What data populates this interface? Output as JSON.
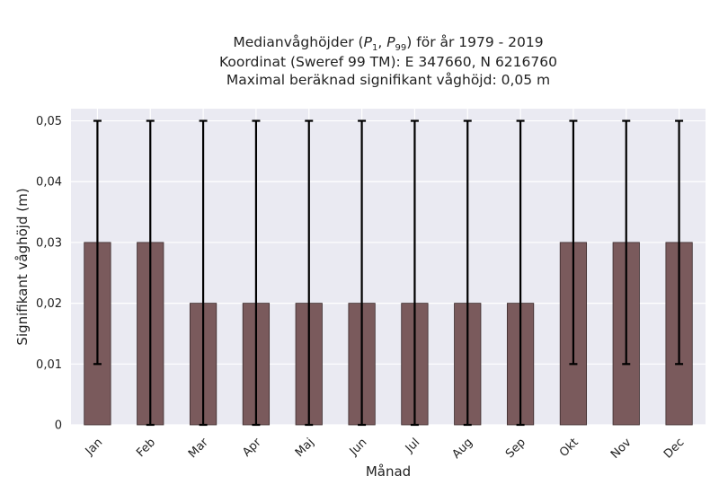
{
  "chart_data": {
    "type": "bar",
    "title_lines": [
      "Medianvåghöjder (P1, P99) för år 1979 - 2019",
      "Koordinat (Sweref 99 TM): E 347660, N 6216760",
      "Maximal beräknad signifikant våghöjd: 0,05 m"
    ],
    "title_math": {
      "p1_main": "P",
      "p1_sub": "1",
      "p99_main": "P",
      "p99_sub": "99"
    },
    "xlabel": "Månad",
    "ylabel": "Signifikant våghöjd (m)",
    "categories": [
      "Jan",
      "Feb",
      "Mar",
      "Apr",
      "Maj",
      "Jun",
      "Jul",
      "Aug",
      "Sep",
      "Okt",
      "Nov",
      "Dec"
    ],
    "values": [
      0.03,
      0.03,
      0.02,
      0.02,
      0.02,
      0.02,
      0.02,
      0.02,
      0.02,
      0.03,
      0.03,
      0.03
    ],
    "error_low": [
      0.01,
      0.0,
      0.0,
      0.0,
      0.0,
      0.0,
      0.0,
      0.0,
      0.0,
      0.01,
      0.01,
      0.01
    ],
    "error_high": [
      0.05,
      0.05,
      0.05,
      0.05,
      0.05,
      0.05,
      0.05,
      0.05,
      0.05,
      0.05,
      0.05,
      0.05
    ],
    "yticks": [
      0,
      0.01,
      0.02,
      0.03,
      0.04,
      0.05
    ],
    "ytick_labels": [
      "0",
      "0,01",
      "0,02",
      "0,03",
      "0,04",
      "0,05"
    ],
    "ylim": [
      0,
      0.052
    ],
    "grid": true,
    "colors": {
      "bar": "#7a5a5c",
      "bar_edge": "#3a2a2b",
      "error": "#000000",
      "plot_bg": "#eaeaf2",
      "grid": "#ffffff"
    }
  }
}
